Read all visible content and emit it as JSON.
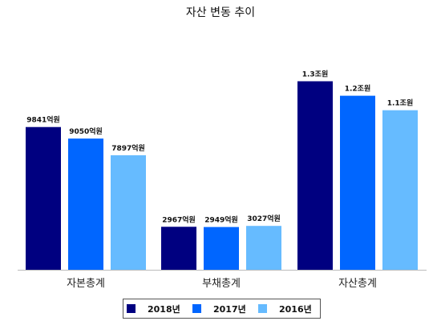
{
  "chart_data": {
    "type": "bar",
    "title": "자산 변동 추이",
    "categories": [
      "자본총계",
      "부채총계",
      "자산총계"
    ],
    "value_unit": "억원",
    "series": [
      {
        "name": "2018년",
        "color": "#000080",
        "values": [
          9841,
          2967,
          13000
        ],
        "labels": [
          "9841억원",
          "2967억원",
          "1.3조원"
        ]
      },
      {
        "name": "2017년",
        "color": "#0066FF",
        "values": [
          9050,
          2949,
          12000
        ],
        "labels": [
          "9050억원",
          "2949억원",
          "1.2조원"
        ]
      },
      {
        "name": "2016년",
        "color": "#66BBFF",
        "values": [
          7897,
          3027,
          11000
        ],
        "labels": [
          "7897억원",
          "3027억원",
          "1.1조원"
        ]
      }
    ],
    "ylim": [
      0,
      13800
    ],
    "grid": false,
    "legend_position": "bottom"
  }
}
